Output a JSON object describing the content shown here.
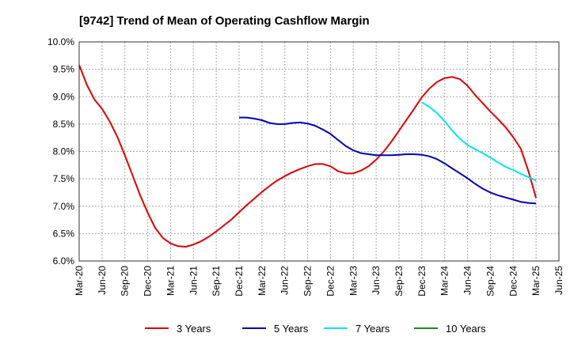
{
  "chart_data": {
    "type": "line",
    "title": "[9742]  Trend of Mean of Operating Cashflow Margin",
    "xlabel": "",
    "ylabel": "",
    "x_tick_labels": [
      "Mar-20",
      "Jun-20",
      "Sep-20",
      "Dec-20",
      "Mar-21",
      "Jun-21",
      "Sep-21",
      "Dec-21",
      "Mar-22",
      "Jun-22",
      "Sep-22",
      "Dec-22",
      "Mar-23",
      "Jun-23",
      "Sep-23",
      "Dec-23",
      "Mar-24",
      "Jun-24",
      "Sep-24",
      "Dec-24",
      "Mar-25",
      "Jun-25"
    ],
    "y_tick_labels": [
      "10.0%",
      "9.5%",
      "9.0%",
      "8.5%",
      "8.0%",
      "7.5%",
      "7.0%",
      "6.5%",
      "6.0%"
    ],
    "y_ticks": [
      10.0,
      9.5,
      9.0,
      8.5,
      8.0,
      7.5,
      7.0,
      6.5,
      6.0
    ],
    "ylim": [
      6.0,
      10.0
    ],
    "xlim": [
      "Mar-20",
      "Jun-25"
    ],
    "grid": true,
    "legend_position": "bottom",
    "series": [
      {
        "name": "3 Years",
        "color": "#dd0000",
        "x": [
          "Mar-20",
          "Apr-20",
          "May-20",
          "Jun-20",
          "Jul-20",
          "Aug-20",
          "Sep-20",
          "Oct-20",
          "Nov-20",
          "Dec-20",
          "Jan-21",
          "Feb-21",
          "Mar-21",
          "Apr-21",
          "May-21",
          "Jun-21",
          "Jul-21",
          "Aug-21",
          "Sep-21",
          "Oct-21",
          "Nov-21",
          "Dec-21",
          "Jan-22",
          "Feb-22",
          "Mar-22",
          "Apr-22",
          "May-22",
          "Jun-22",
          "Jul-22",
          "Aug-22",
          "Sep-22",
          "Oct-22",
          "Nov-22",
          "Dec-22",
          "Jan-23",
          "Feb-23",
          "Mar-23",
          "Apr-23",
          "May-23",
          "Jun-23",
          "Jul-23",
          "Aug-23",
          "Sep-23",
          "Oct-23",
          "Nov-23",
          "Dec-23",
          "Jan-24",
          "Feb-24",
          "Mar-24",
          "Apr-24",
          "May-24",
          "Jun-24",
          "Jul-24",
          "Aug-24",
          "Sep-24",
          "Oct-24",
          "Nov-24",
          "Dec-24",
          "Jan-25",
          "Feb-25",
          "Mar-25"
        ],
        "values": [
          9.58,
          9.22,
          8.95,
          8.78,
          8.55,
          8.27,
          7.93,
          7.57,
          7.2,
          6.88,
          6.6,
          6.42,
          6.32,
          6.27,
          6.26,
          6.3,
          6.36,
          6.44,
          6.54,
          6.65,
          6.76,
          6.89,
          7.02,
          7.14,
          7.26,
          7.37,
          7.47,
          7.55,
          7.62,
          7.68,
          7.73,
          7.77,
          7.77,
          7.73,
          7.64,
          7.6,
          7.6,
          7.65,
          7.73,
          7.85,
          8.0,
          8.18,
          8.38,
          8.58,
          8.78,
          8.99,
          9.15,
          9.27,
          9.34,
          9.36,
          9.32,
          9.2,
          9.03,
          8.88,
          8.73,
          8.59,
          8.44,
          8.26,
          8.05,
          7.64,
          7.15
        ]
      },
      {
        "name": "5 Years",
        "color": "#0000bb",
        "x": [
          "Dec-21",
          "Jan-22",
          "Feb-22",
          "Mar-22",
          "Apr-22",
          "May-22",
          "Jun-22",
          "Jul-22",
          "Aug-22",
          "Sep-22",
          "Oct-22",
          "Nov-22",
          "Dec-22",
          "Jan-23",
          "Feb-23",
          "Mar-23",
          "Apr-23",
          "May-23",
          "Jun-23",
          "Jul-23",
          "Aug-23",
          "Sep-23",
          "Oct-23",
          "Nov-23",
          "Dec-23",
          "Jan-24",
          "Feb-24",
          "Mar-24",
          "Apr-24",
          "May-24",
          "Jun-24",
          "Jul-24",
          "Aug-24",
          "Sep-24",
          "Oct-24",
          "Nov-24",
          "Dec-24",
          "Jan-25",
          "Feb-25",
          "Mar-25"
        ],
        "values": [
          8.62,
          8.62,
          8.6,
          8.57,
          8.52,
          8.5,
          8.5,
          8.52,
          8.53,
          8.51,
          8.47,
          8.4,
          8.32,
          8.21,
          8.1,
          8.02,
          7.97,
          7.95,
          7.93,
          7.93,
          7.93,
          7.94,
          7.95,
          7.95,
          7.94,
          7.91,
          7.86,
          7.78,
          7.69,
          7.6,
          7.51,
          7.41,
          7.32,
          7.25,
          7.2,
          7.16,
          7.12,
          7.08,
          7.06,
          7.05
        ]
      },
      {
        "name": "7 Years",
        "color": "#00e5e5",
        "x": [
          "Dec-23",
          "Jan-24",
          "Feb-24",
          "Mar-24",
          "Apr-24",
          "May-24",
          "Jun-24",
          "Jul-24",
          "Aug-24",
          "Sep-24",
          "Oct-24",
          "Nov-24",
          "Dec-24",
          "Jan-25",
          "Feb-25",
          "Mar-25"
        ],
        "values": [
          8.9,
          8.81,
          8.7,
          8.55,
          8.38,
          8.23,
          8.12,
          8.04,
          7.97,
          7.89,
          7.8,
          7.72,
          7.66,
          7.59,
          7.53,
          7.47
        ]
      },
      {
        "name": "10 Years",
        "color": "#228822",
        "x": [],
        "values": []
      }
    ]
  }
}
